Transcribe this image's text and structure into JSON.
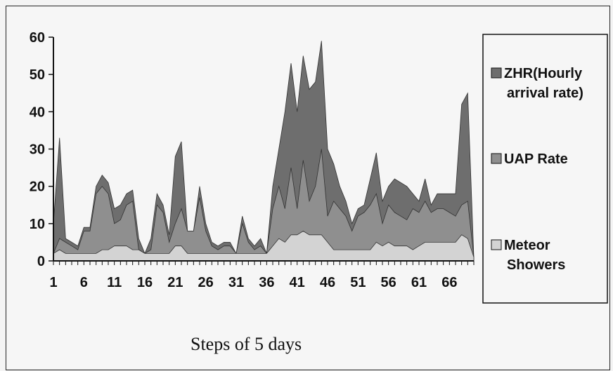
{
  "chart_data": {
    "type": "area",
    "stacked": false,
    "xlabel": "Steps of 5 days",
    "ylabel": "",
    "ylim": [
      0,
      60
    ],
    "yticks": [
      0,
      10,
      20,
      30,
      40,
      50,
      60
    ],
    "xtick_labels": [
      "1",
      "6",
      "11",
      "16",
      "21",
      "26",
      "31",
      "36",
      "41",
      "46",
      "51",
      "56",
      "61",
      "66"
    ],
    "xrange": [
      1,
      71
    ],
    "grid": false,
    "legend_position": "right",
    "series": [
      {
        "name": "ZHR(Hourly arrival rate)",
        "color": "#6e6e6e",
        "values": [
          10,
          33,
          6,
          5,
          4,
          9,
          9,
          20,
          23,
          21,
          14,
          15,
          18,
          19,
          6,
          2,
          6,
          18,
          15,
          7,
          28,
          32,
          8,
          8,
          20,
          10,
          5,
          4,
          5,
          5,
          2,
          12,
          6,
          4,
          6,
          2,
          20,
          30,
          40,
          53,
          40,
          55,
          46,
          48,
          59,
          30,
          26,
          20,
          16,
          10,
          14,
          15,
          22,
          29,
          16,
          20,
          22,
          21,
          20,
          18,
          16,
          22,
          15,
          18,
          18,
          18,
          18,
          42,
          45,
          1
        ]
      },
      {
        "name": "UAP Rate",
        "color": "#8f8f8f",
        "values": [
          2,
          6,
          5,
          4,
          3,
          8,
          8,
          18,
          20,
          18,
          10,
          11,
          15,
          16,
          3,
          2,
          3,
          15,
          13,
          5,
          10,
          14,
          8,
          8,
          17,
          8,
          4,
          3,
          4,
          4,
          2,
          10,
          5,
          3,
          4,
          2,
          14,
          20,
          14,
          25,
          14,
          27,
          16,
          20,
          30,
          12,
          16,
          14,
          12,
          8,
          12,
          13,
          15,
          18,
          10,
          15,
          13,
          12,
          11,
          14,
          13,
          16,
          13,
          14,
          14,
          13,
          12,
          15,
          16,
          1
        ]
      },
      {
        "name": "Meteor Showers",
        "color": "#d3d3d3",
        "values": [
          2,
          3,
          2,
          2,
          2,
          2,
          2,
          2,
          3,
          3,
          4,
          4,
          4,
          3,
          3,
          2,
          2,
          2,
          2,
          2,
          4,
          4,
          2,
          2,
          2,
          2,
          2,
          2,
          2,
          2,
          2,
          2,
          2,
          2,
          2,
          2,
          4,
          6,
          5,
          7,
          7,
          8,
          7,
          7,
          7,
          5,
          3,
          3,
          3,
          3,
          3,
          3,
          3,
          5,
          4,
          5,
          4,
          4,
          4,
          3,
          4,
          5,
          5,
          5,
          5,
          5,
          5,
          7,
          6,
          1
        ]
      }
    ]
  }
}
